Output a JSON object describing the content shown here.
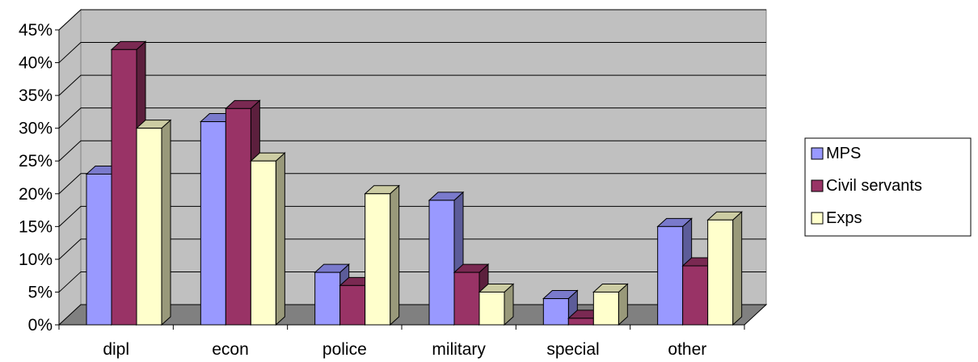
{
  "chart_data": {
    "type": "bar",
    "subtype": "3d-clustered-column",
    "categories": [
      "dipl",
      "econ",
      "police",
      "military",
      "special",
      "other"
    ],
    "series": [
      {
        "name": "MPS",
        "values": [
          23,
          31,
          8,
          19,
          4,
          15
        ],
        "color": "#9999ff"
      },
      {
        "name": "Civil servants",
        "values": [
          42,
          33,
          6,
          8,
          1,
          9
        ],
        "color": "#993366"
      },
      {
        "name": "Exps",
        "values": [
          30,
          25,
          20,
          5,
          5,
          16
        ],
        "color": "#ffffcc"
      }
    ],
    "ylim": [
      0,
      45
    ],
    "yticks": [
      0,
      5,
      10,
      15,
      20,
      25,
      30,
      35,
      40,
      45
    ],
    "ytick_labels": [
      "0%",
      "5%",
      "10%",
      "15%",
      "20%",
      "25%",
      "30%",
      "35%",
      "40%",
      "45%"
    ],
    "grid": true,
    "wall_color": "#c0c0c0",
    "floor_color": "#808080",
    "legend_position": "right"
  }
}
